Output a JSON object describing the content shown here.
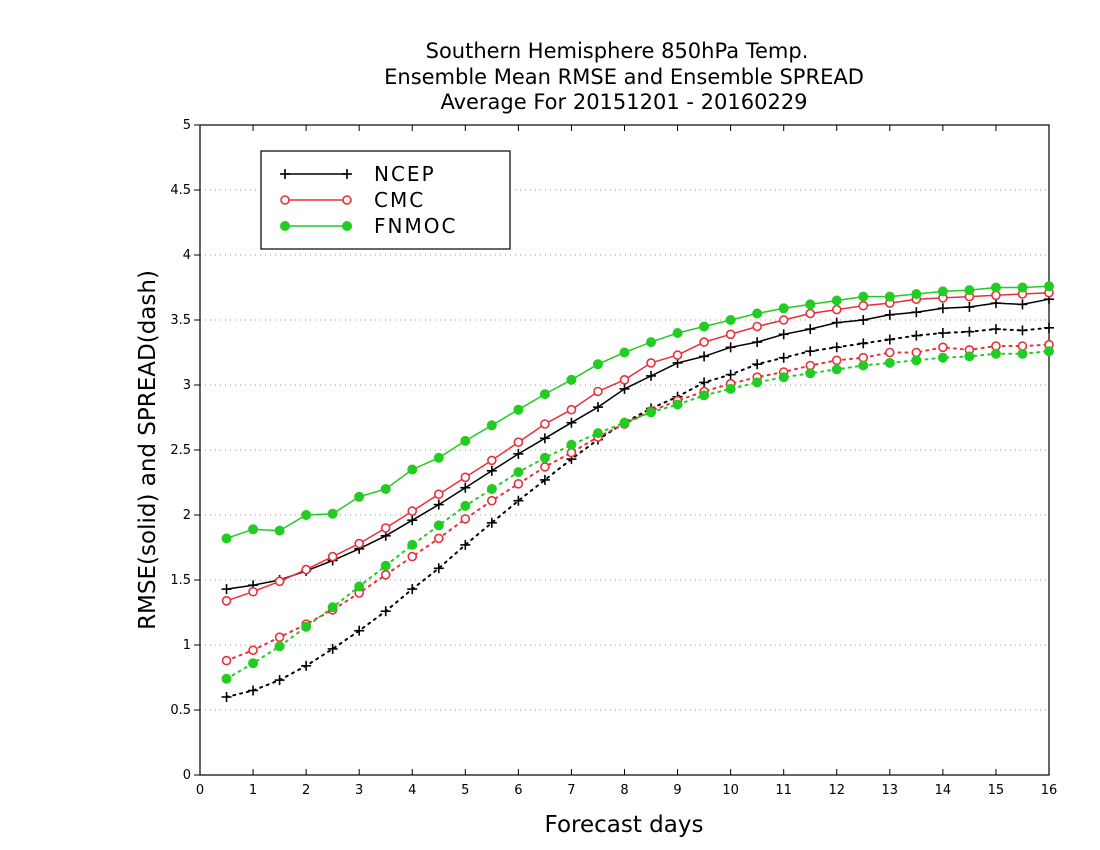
{
  "chart_data": {
    "type": "line",
    "title": [
      "Southern Hemisphere 850hPa Temp.",
      "Ensemble Mean RMSE and Ensemble SPREAD",
      "Average For 20151201 - 20160229"
    ],
    "xlabel": "Forecast days",
    "ylabel": "RMSE(solid) and SPREAD(dash)",
    "xlim": [
      0,
      16
    ],
    "ylim": [
      0,
      5
    ],
    "xticks": [
      0,
      1,
      2,
      3,
      4,
      5,
      6,
      7,
      8,
      9,
      10,
      11,
      12,
      13,
      14,
      15,
      16
    ],
    "yticks": [
      0,
      0.5,
      1,
      1.5,
      2,
      2.5,
      3,
      3.5,
      4,
      4.5,
      5
    ],
    "ytick_labels": [
      "0",
      "0.5",
      "1",
      "1.5",
      "2",
      "2.5",
      "3",
      "3.5",
      "4",
      "4.5",
      "5"
    ],
    "grid": "horizontal-dotted",
    "legend_position": "top-left",
    "x": [
      0.5,
      1,
      1.5,
      2,
      2.5,
      3,
      3.5,
      4,
      4.5,
      5,
      5.5,
      6,
      6.5,
      7,
      7.5,
      8,
      8.5,
      9,
      9.5,
      10,
      10.5,
      11,
      11.5,
      12,
      12.5,
      13,
      13.5,
      14,
      14.5,
      15,
      15.5,
      16
    ],
    "series": [
      {
        "name": "NCEP",
        "color": "#000000",
        "marker": "plus",
        "rmse": [
          1.43,
          1.46,
          1.5,
          1.57,
          1.65,
          1.74,
          1.84,
          1.96,
          2.08,
          2.21,
          2.34,
          2.47,
          2.59,
          2.71,
          2.83,
          2.97,
          3.07,
          3.17,
          3.22,
          3.29,
          3.33,
          3.39,
          3.43,
          3.48,
          3.5,
          3.54,
          3.56,
          3.59,
          3.6,
          3.63,
          3.62,
          3.66
        ],
        "spread": [
          0.6,
          0.65,
          0.73,
          0.84,
          0.97,
          1.11,
          1.26,
          1.43,
          1.59,
          1.77,
          1.94,
          2.11,
          2.27,
          2.43,
          2.58,
          2.71,
          2.82,
          2.91,
          3.02,
          3.08,
          3.16,
          3.21,
          3.26,
          3.29,
          3.32,
          3.35,
          3.38,
          3.4,
          3.41,
          3.43,
          3.42,
          3.44
        ]
      },
      {
        "name": "CMC",
        "color": "#e8303a",
        "marker": "open-circle",
        "rmse": [
          1.34,
          1.41,
          1.49,
          1.58,
          1.68,
          1.78,
          1.9,
          2.03,
          2.16,
          2.29,
          2.42,
          2.56,
          2.7,
          2.81,
          2.95,
          3.04,
          3.17,
          3.23,
          3.33,
          3.39,
          3.45,
          3.5,
          3.55,
          3.58,
          3.61,
          3.63,
          3.66,
          3.67,
          3.68,
          3.69,
          3.7,
          3.71
        ],
        "spread": [
          0.88,
          0.96,
          1.06,
          1.16,
          1.27,
          1.4,
          1.54,
          1.68,
          1.82,
          1.97,
          2.11,
          2.24,
          2.37,
          2.48,
          2.6,
          2.7,
          2.8,
          2.88,
          2.95,
          3.01,
          3.06,
          3.1,
          3.15,
          3.19,
          3.21,
          3.25,
          3.25,
          3.29,
          3.27,
          3.3,
          3.3,
          3.31
        ]
      },
      {
        "name": "FNMOC",
        "color": "#22cc22",
        "marker": "filled-circle",
        "rmse": [
          1.82,
          1.89,
          1.88,
          2.0,
          2.01,
          2.14,
          2.2,
          2.35,
          2.44,
          2.57,
          2.69,
          2.81,
          2.93,
          3.04,
          3.16,
          3.25,
          3.33,
          3.4,
          3.45,
          3.5,
          3.55,
          3.59,
          3.62,
          3.65,
          3.68,
          3.68,
          3.7,
          3.72,
          3.73,
          3.75,
          3.75,
          3.76
        ],
        "spread": [
          0.74,
          0.86,
          0.99,
          1.14,
          1.29,
          1.45,
          1.61,
          1.77,
          1.92,
          2.07,
          2.2,
          2.33,
          2.44,
          2.54,
          2.63,
          2.71,
          2.79,
          2.85,
          2.92,
          2.97,
          3.02,
          3.06,
          3.09,
          3.12,
          3.15,
          3.17,
          3.19,
          3.21,
          3.22,
          3.24,
          3.24,
          3.26
        ]
      }
    ]
  }
}
